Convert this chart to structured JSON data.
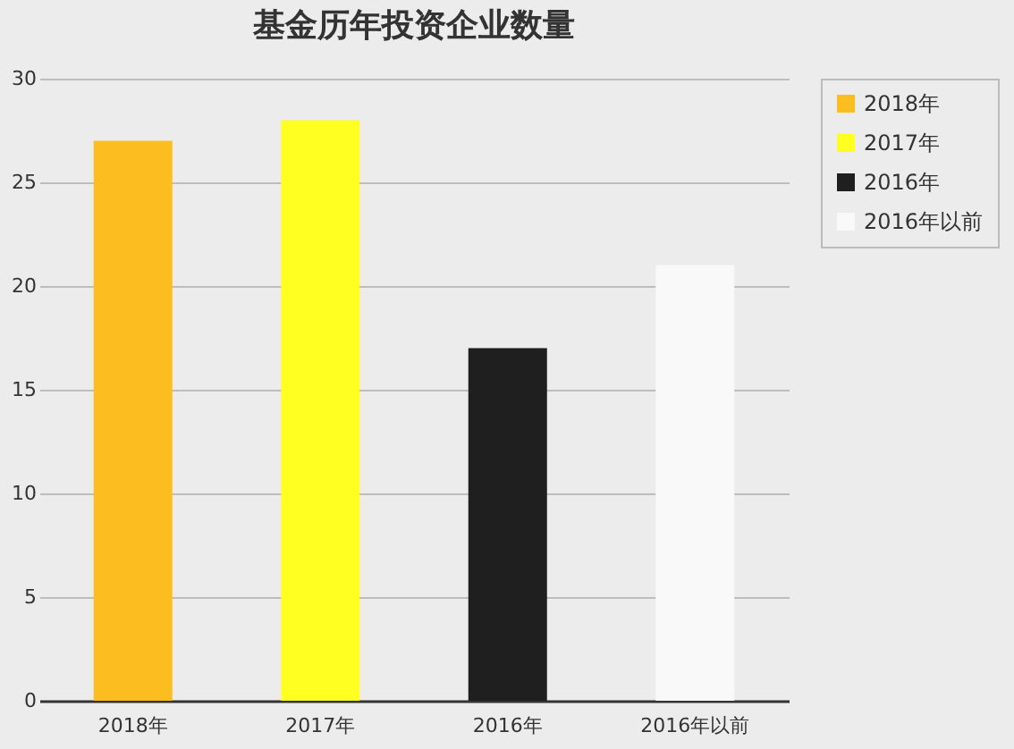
{
  "chart_data": {
    "type": "bar",
    "title": "基金历年投资企业数量",
    "categories": [
      "2018年",
      "2017年",
      "2016年",
      "2016年以前"
    ],
    "series": [
      {
        "name": "2018年",
        "color": "#fbbd1f",
        "values": [
          27,
          null,
          null,
          null
        ]
      },
      {
        "name": "2017年",
        "color": "#ffff22",
        "values": [
          null,
          28,
          null,
          null
        ]
      },
      {
        "name": "2016年",
        "color": "#1f1f1f",
        "values": [
          null,
          null,
          17,
          null
        ]
      },
      {
        "name": "2016年以前",
        "color": "#f9f9f9",
        "values": [
          null,
          null,
          null,
          21
        ]
      }
    ],
    "ylim": [
      0,
      30
    ],
    "yticks": [
      0,
      5,
      10,
      15,
      20,
      25,
      30
    ],
    "grid": "y",
    "legend": "right"
  }
}
